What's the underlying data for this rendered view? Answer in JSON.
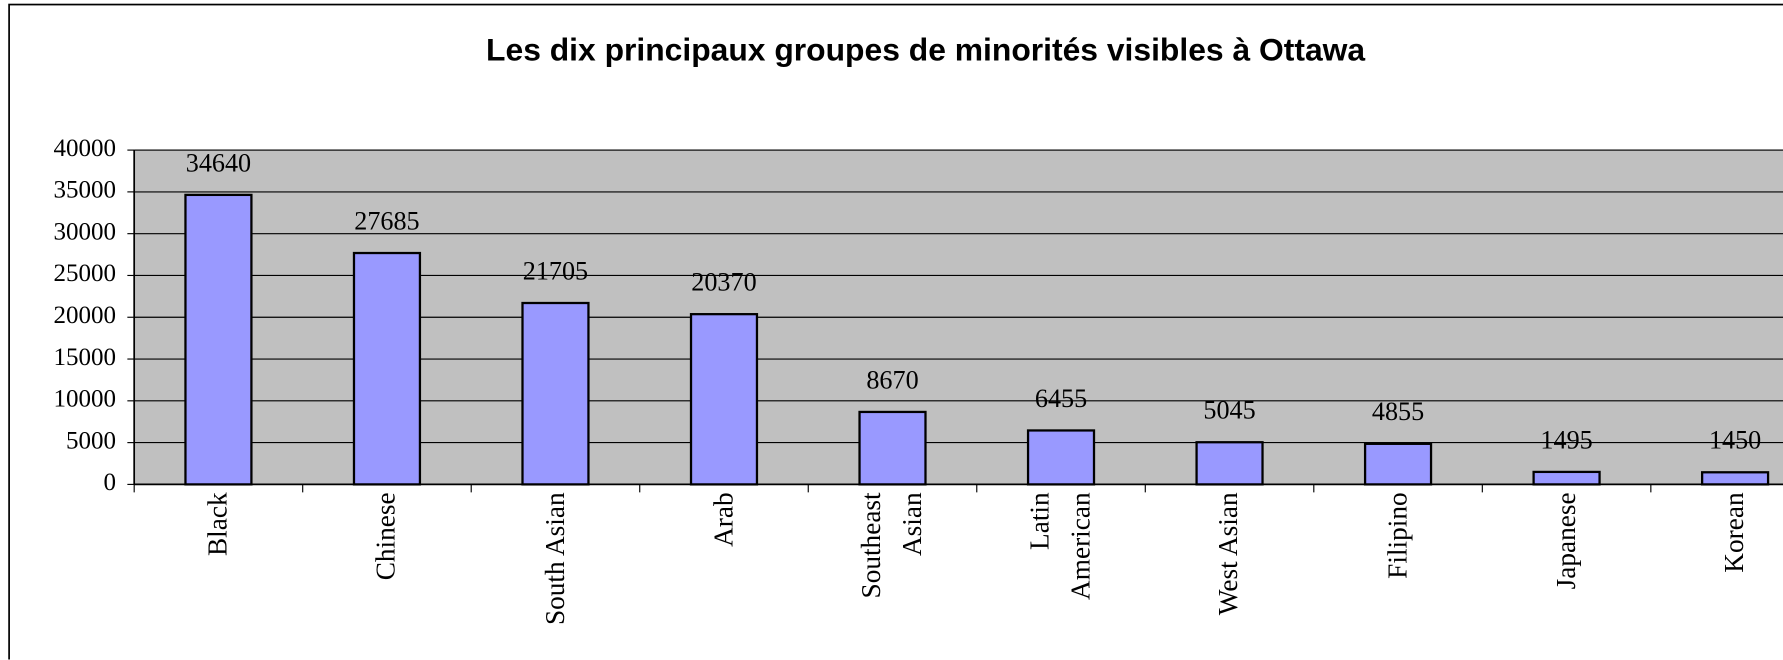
{
  "chart_data": {
    "type": "bar",
    "title": "Les dix principaux groupes de minorités visibles à Ottawa",
    "categories": [
      "Black",
      "Chinese",
      "South Asian",
      "Arab",
      "Southeast Asian",
      "Latin American",
      "West Asian",
      "Filipino",
      "Japanese",
      "Korean"
    ],
    "values": [
      34640,
      27685,
      21705,
      20370,
      8670,
      6455,
      5045,
      4855,
      1495,
      1450
    ],
    "color": "#9999ff",
    "ylim": [
      0,
      40000
    ],
    "yticks": [
      0,
      5000,
      10000,
      15000,
      20000,
      25000,
      30000,
      35000,
      40000
    ],
    "grid": true
  }
}
